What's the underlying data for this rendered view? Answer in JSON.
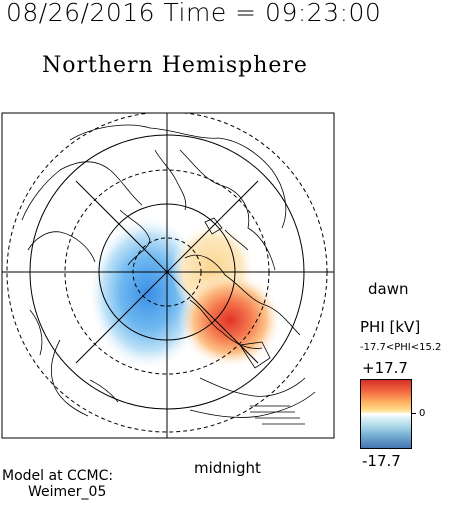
{
  "header": {
    "timestamp": "08/26/2016 Time = 09:23:00",
    "title": "Northern Hemisphere"
  },
  "map": {
    "projection": "polar",
    "pole": "north",
    "dawn_label": "dawn",
    "midnight_label": "midnight"
  },
  "legend": {
    "quantity": "PHI [kV]",
    "range_text": "-17.7<PHI<15.2",
    "max_label": "+17.7",
    "min_label": "-17.7",
    "zero_label": "0",
    "colors": {
      "positive": "#d73027",
      "negative": "#4575b4"
    }
  },
  "credit": {
    "line1": "Model at CCMC:",
    "line2": "Weimer_05"
  }
}
